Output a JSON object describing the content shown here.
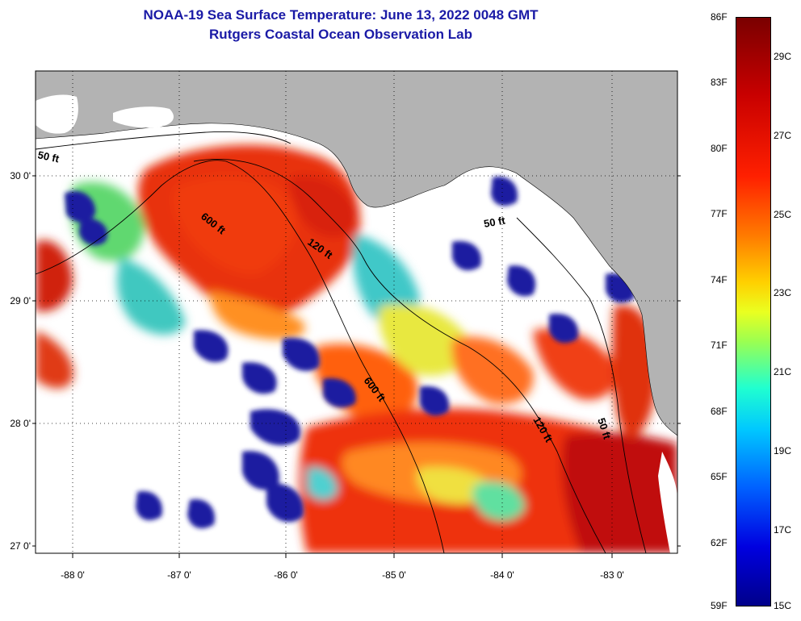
{
  "title": {
    "line1": "NOAA-19 Sea Surface Temperature:  June 13, 2022 0048 GMT",
    "line2": "Rutgers Coastal Ocean Observation Lab"
  },
  "axes": {
    "lat_ticks": [
      "30 0'",
      "29 0'",
      "28 0'",
      "27 0'"
    ],
    "lon_ticks": [
      "-88 0'",
      "-87 0'",
      "-86 0'",
      "-85 0'",
      "-84 0'",
      "-83 0'"
    ]
  },
  "contours": {
    "labels": [
      "50 ft",
      "600 ft",
      "120 ft",
      "50 ft",
      "600 ft",
      "120 ft",
      "50 ft"
    ]
  },
  "colorbar": {
    "fahrenheit": [
      "86F",
      "83F",
      "80F",
      "77F",
      "74F",
      "71F",
      "68F",
      "65F",
      "62F",
      "59F"
    ],
    "celsius": [
      "29C",
      "27C",
      "25C",
      "23C",
      "21C",
      "19C",
      "17C",
      "15C"
    ],
    "range_f": [
      59,
      86
    ],
    "range_c": [
      15,
      30
    ]
  },
  "colors": {
    "land": "#b3b3b3",
    "cloud_mask": "#ffffff",
    "title": "#1a1aa6"
  }
}
